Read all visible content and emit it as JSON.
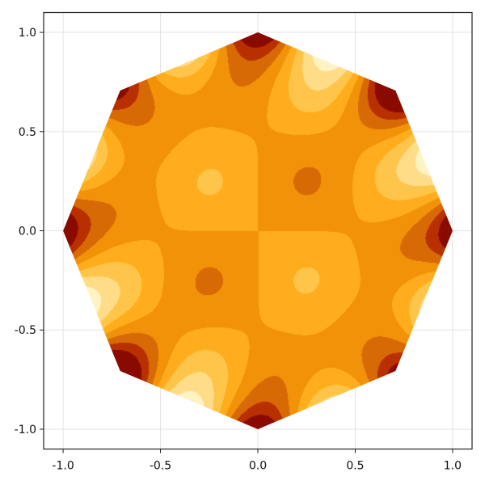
{
  "chart_data": {
    "type": "heatmap",
    "subtype": "filled-contour",
    "title": "",
    "xlabel": "",
    "ylabel": "",
    "xlim": [
      -1.1,
      1.1
    ],
    "ylim": [
      -1.1,
      1.1
    ],
    "xticks": [
      -1.0,
      -0.5,
      0.0,
      0.5,
      1.0
    ],
    "yticks": [
      -1.0,
      -0.5,
      0.0,
      0.5,
      1.0
    ],
    "xtick_labels": [
      "-1.0",
      "-0.5",
      "0.0",
      "0.5",
      "1.0"
    ],
    "ytick_labels": [
      "-1.0",
      "-0.5",
      "0.0",
      "0.5",
      "1.0"
    ],
    "grid": true,
    "legend": "none",
    "domain": {
      "shape": "regular octagon",
      "vertices": [
        [
          1,
          0
        ],
        [
          0.707,
          0.707
        ],
        [
          0,
          1
        ],
        [
          -0.707,
          0.707
        ],
        [
          -1,
          0
        ],
        [
          -0.707,
          -0.707
        ],
        [
          0,
          -1
        ],
        [
          0.707,
          -0.707
        ]
      ]
    },
    "colormap": [
      "#8b0a00",
      "#b83000",
      "#d86a05",
      "#f29208",
      "#ffad1c",
      "#ffc54a",
      "#ffdc88",
      "#fff3c4"
    ],
    "level_count": 8,
    "base_level_color": "#f29208",
    "features": [
      {
        "kind": "plateau",
        "x": -0.27,
        "y": 0.27,
        "color": "#ffad1c"
      },
      {
        "kind": "peak",
        "x": -0.26,
        "y": 0.27,
        "color": "#ffc54a"
      },
      {
        "kind": "plateau",
        "x": 0.27,
        "y": -0.27,
        "color": "#ffad1c"
      },
      {
        "kind": "peak",
        "x": 0.26,
        "y": -0.27,
        "color": "#ffc54a"
      },
      {
        "kind": "trough",
        "x": 0.26,
        "y": 0.28,
        "color": "#d86a05"
      },
      {
        "kind": "trough",
        "x": -0.27,
        "y": -0.27,
        "color": "#d86a05"
      },
      {
        "kind": "edge-hot",
        "x": -0.27,
        "y": 0.92
      },
      {
        "kind": "edge-cold",
        "x": 0.27,
        "y": 0.92
      },
      {
        "kind": "edge-hot",
        "x": 0.65,
        "y": 0.65
      },
      {
        "kind": "edge-cold",
        "x": 0.92,
        "y": 0.38
      },
      {
        "kind": "edge-hot",
        "x": 0.92,
        "y": -0.27
      },
      {
        "kind": "edge-cold",
        "x": 0.65,
        "y": -0.65
      },
      {
        "kind": "edge-hot",
        "x": 0.27,
        "y": -0.92
      },
      {
        "kind": "edge-cold",
        "x": -0.27,
        "y": -0.92
      },
      {
        "kind": "edge-hot",
        "x": -0.65,
        "y": -0.65
      },
      {
        "kind": "edge-cold",
        "x": -0.92,
        "y": -0.27
      },
      {
        "kind": "edge-hot",
        "x": -0.92,
        "y": 0.27
      },
      {
        "kind": "edge-cold",
        "x": -0.65,
        "y": 0.65
      }
    ]
  }
}
